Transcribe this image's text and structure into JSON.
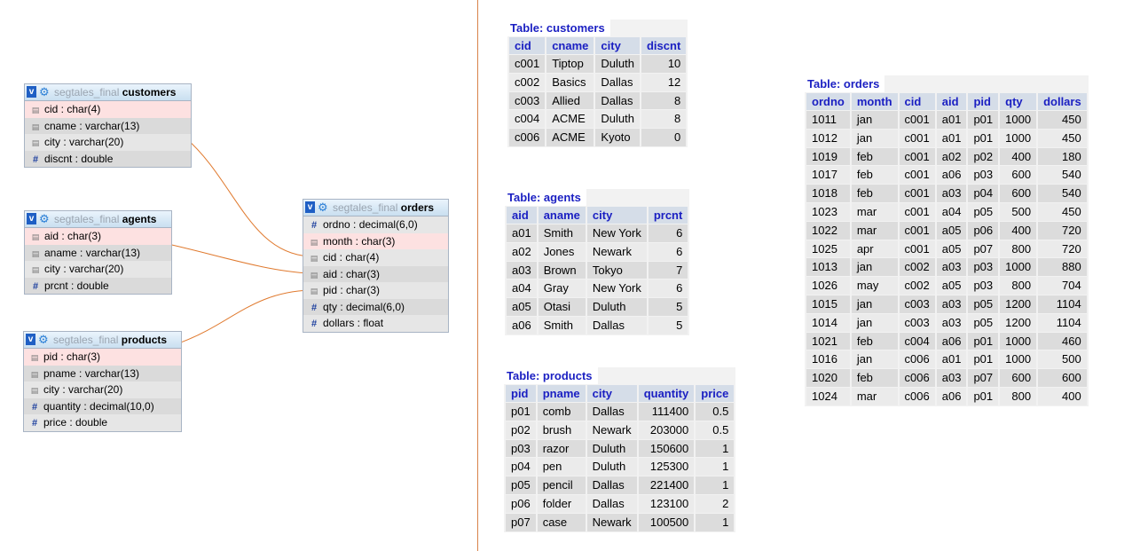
{
  "designer": {
    "tables": [
      {
        "key": "customers",
        "db": "segtales_final",
        "name": "customers",
        "toggle": "v",
        "fields": [
          {
            "label": "cid : char(4)",
            "type": "key",
            "pk": true
          },
          {
            "label": "cname : varchar(13)",
            "type": "str"
          },
          {
            "label": "city : varchar(20)",
            "type": "str"
          },
          {
            "label": "discnt : double",
            "type": "num"
          }
        ]
      },
      {
        "key": "agents",
        "db": "segtales_final",
        "name": "agents",
        "toggle": "v",
        "fields": [
          {
            "label": "aid : char(3)",
            "type": "key",
            "pk": true
          },
          {
            "label": "aname : varchar(13)",
            "type": "str"
          },
          {
            "label": "city : varchar(20)",
            "type": "str"
          },
          {
            "label": "prcnt : double",
            "type": "num"
          }
        ]
      },
      {
        "key": "products",
        "db": "segtales_final",
        "name": "products",
        "toggle": "v",
        "fields": [
          {
            "label": "pid : char(3)",
            "type": "key",
            "pk": true
          },
          {
            "label": "pname : varchar(13)",
            "type": "str"
          },
          {
            "label": "city : varchar(20)",
            "type": "str"
          },
          {
            "label": "quantity : decimal(10,0)",
            "type": "num"
          },
          {
            "label": "price : double",
            "type": "num"
          }
        ]
      },
      {
        "key": "orders",
        "db": "segtales_final",
        "name": "orders",
        "toggle": "v",
        "fields": [
          {
            "label": "ordno : decimal(6,0)",
            "type": "num"
          },
          {
            "label": "month : char(3)",
            "type": "str",
            "pk": true
          },
          {
            "label": "cid : char(4)",
            "type": "key"
          },
          {
            "label": "aid : char(3)",
            "type": "key"
          },
          {
            "label": "pid : char(3)",
            "type": "key"
          },
          {
            "label": "qty : decimal(6,0)",
            "type": "num"
          },
          {
            "label": "dollars : float",
            "type": "num"
          }
        ]
      }
    ]
  },
  "results": {
    "customers": {
      "title": "Table: customers",
      "columns": [
        "cid",
        "cname",
        "city",
        "discnt"
      ],
      "numeric": [
        false,
        false,
        false,
        true
      ],
      "rows": [
        [
          "c001",
          "Tiptop",
          "Duluth",
          "10"
        ],
        [
          "c002",
          "Basics",
          "Dallas",
          "12"
        ],
        [
          "c003",
          "Allied",
          "Dallas",
          "8"
        ],
        [
          "c004",
          "ACME",
          "Duluth",
          "8"
        ],
        [
          "c006",
          "ACME",
          "Kyoto",
          "0"
        ]
      ]
    },
    "agents": {
      "title": "Table: agents",
      "columns": [
        "aid",
        "aname",
        "city",
        "prcnt"
      ],
      "numeric": [
        false,
        false,
        false,
        true
      ],
      "rows": [
        [
          "a01",
          "Smith",
          "New York",
          "6"
        ],
        [
          "a02",
          "Jones",
          "Newark",
          "6"
        ],
        [
          "a03",
          "Brown",
          "Tokyo",
          "7"
        ],
        [
          "a04",
          "Gray",
          "New York",
          "6"
        ],
        [
          "a05",
          "Otasi",
          "Duluth",
          "5"
        ],
        [
          "a06",
          "Smith",
          "Dallas",
          "5"
        ]
      ]
    },
    "products": {
      "title": "Table: products",
      "columns": [
        "pid",
        "pname",
        "city",
        "quantity",
        "price"
      ],
      "numeric": [
        false,
        false,
        false,
        true,
        true
      ],
      "rows": [
        [
          "p01",
          "comb",
          "Dallas",
          "111400",
          "0.5"
        ],
        [
          "p02",
          "brush",
          "Newark",
          "203000",
          "0.5"
        ],
        [
          "p03",
          "razor",
          "Duluth",
          "150600",
          "1"
        ],
        [
          "p04",
          "pen",
          "Duluth",
          "125300",
          "1"
        ],
        [
          "p05",
          "pencil",
          "Dallas",
          "221400",
          "1"
        ],
        [
          "p06",
          "folder",
          "Dallas",
          "123100",
          "2"
        ],
        [
          "p07",
          "case",
          "Newark",
          "100500",
          "1"
        ]
      ]
    },
    "orders": {
      "title": "Table: orders",
      "columns": [
        "ordno",
        "month",
        "cid",
        "aid",
        "pid",
        "qty",
        "dollars"
      ],
      "numeric": [
        false,
        false,
        false,
        false,
        false,
        true,
        true
      ],
      "rows": [
        [
          "1011",
          "jan",
          "c001",
          "a01",
          "p01",
          "1000",
          "450"
        ],
        [
          "1012",
          "jan",
          "c001",
          "a01",
          "p01",
          "1000",
          "450"
        ],
        [
          "1019",
          "feb",
          "c001",
          "a02",
          "p02",
          "400",
          "180"
        ],
        [
          "1017",
          "feb",
          "c001",
          "a06",
          "p03",
          "600",
          "540"
        ],
        [
          "1018",
          "feb",
          "c001",
          "a03",
          "p04",
          "600",
          "540"
        ],
        [
          "1023",
          "mar",
          "c001",
          "a04",
          "p05",
          "500",
          "450"
        ],
        [
          "1022",
          "mar",
          "c001",
          "a05",
          "p06",
          "400",
          "720"
        ],
        [
          "1025",
          "apr",
          "c001",
          "a05",
          "p07",
          "800",
          "720"
        ],
        [
          "1013",
          "jan",
          "c002",
          "a03",
          "p03",
          "1000",
          "880"
        ],
        [
          "1026",
          "may",
          "c002",
          "a05",
          "p03",
          "800",
          "704"
        ],
        [
          "1015",
          "jan",
          "c003",
          "a03",
          "p05",
          "1200",
          "1104"
        ],
        [
          "1014",
          "jan",
          "c003",
          "a03",
          "p05",
          "1200",
          "1104"
        ],
        [
          "1021",
          "feb",
          "c004",
          "a06",
          "p01",
          "1000",
          "460"
        ],
        [
          "1016",
          "jan",
          "c006",
          "a01",
          "p01",
          "1000",
          "500"
        ],
        [
          "1020",
          "feb",
          "c006",
          "a03",
          "p07",
          "600",
          "600"
        ],
        [
          "1024",
          "mar",
          "c006",
          "a06",
          "p01",
          "800",
          "400"
        ]
      ]
    }
  },
  "colors": {
    "relation_line": "#e07a2f",
    "title_text": "#1a1fc2",
    "divider": "#d9834a"
  }
}
